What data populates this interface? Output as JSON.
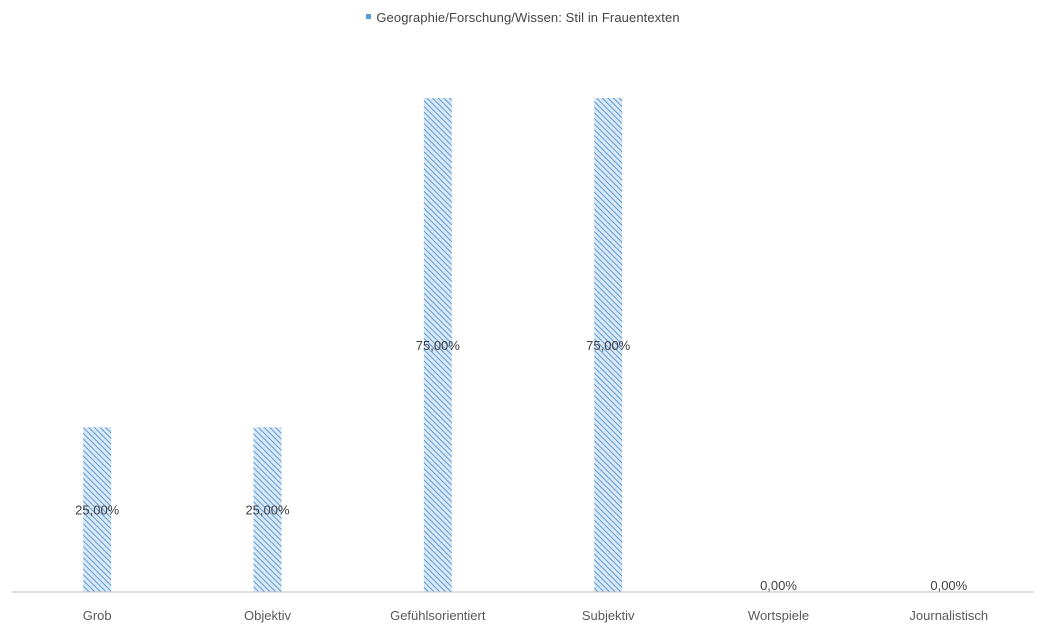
{
  "chart_data": {
    "type": "bar",
    "categories": [
      "Grob",
      "Objektiv",
      "Gefühlsorientiert",
      "Subjektiv",
      "Wortspiele",
      "Journalistisch"
    ],
    "series": [
      {
        "name": "Geographie/Forschung/Wissen: Stil in Frauentexten",
        "values": [
          0.25,
          0.25,
          0.75,
          0.75,
          0.0,
          0.0
        ]
      }
    ],
    "data_labels": [
      "25,00%",
      "25,00%",
      "75,00%",
      "75,00%",
      "0,00%",
      "0,00%"
    ],
    "ylim": [
      0,
      0.75
    ],
    "legend_position": "top",
    "grid": false,
    "colors": {
      "bar": "#5b9bd5",
      "axis": "#bfbfbf"
    },
    "bar_pattern": "diagonal-hatch"
  }
}
